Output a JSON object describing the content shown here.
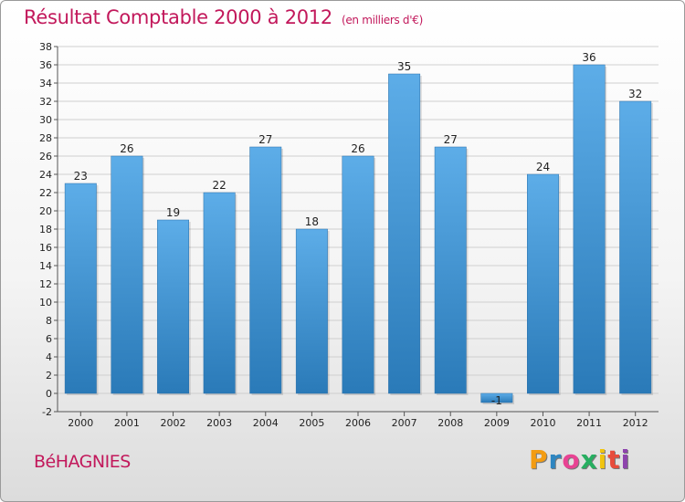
{
  "header": {
    "title": "Résultat Comptable 2000 à 2012",
    "subtitle": "(en milliers d'€)"
  },
  "footer": {
    "commune": "BéHAGNIES",
    "logo_letters": [
      "P",
      "r",
      "o",
      "x",
      "i",
      "t",
      "i"
    ],
    "logo_colors": [
      "#f39c12",
      "#2e86c1",
      "#e84393",
      "#27ae60",
      "#f1c40f",
      "#e74c3c",
      "#8e44ad"
    ]
  },
  "colors": {
    "accent": "#c2185b",
    "bar_top": "#5dade8",
    "bar_bottom": "#2a7ab8",
    "grid": "#cfcfcf"
  },
  "chart_data": {
    "type": "bar",
    "title": "Résultat Comptable 2000 à 2012",
    "subtitle": "(en milliers d'€)",
    "categories": [
      "2000",
      "2001",
      "2002",
      "2003",
      "2004",
      "2005",
      "2006",
      "2007",
      "2008",
      "2009",
      "2010",
      "2011",
      "2012"
    ],
    "values": [
      23,
      26,
      19,
      22,
      27,
      18,
      26,
      35,
      27,
      -1,
      24,
      36,
      32
    ],
    "data_labels": [
      "23",
      "26",
      "19",
      "22",
      "27",
      "18",
      "26",
      "35",
      "27",
      "-1",
      "24",
      "36",
      "32"
    ],
    "ylim": [
      -2,
      38
    ],
    "yticks": [
      -2,
      0,
      2,
      4,
      6,
      8,
      10,
      12,
      14,
      16,
      18,
      20,
      22,
      24,
      26,
      28,
      30,
      32,
      34,
      36,
      38
    ],
    "grid": true,
    "legend": "none"
  }
}
